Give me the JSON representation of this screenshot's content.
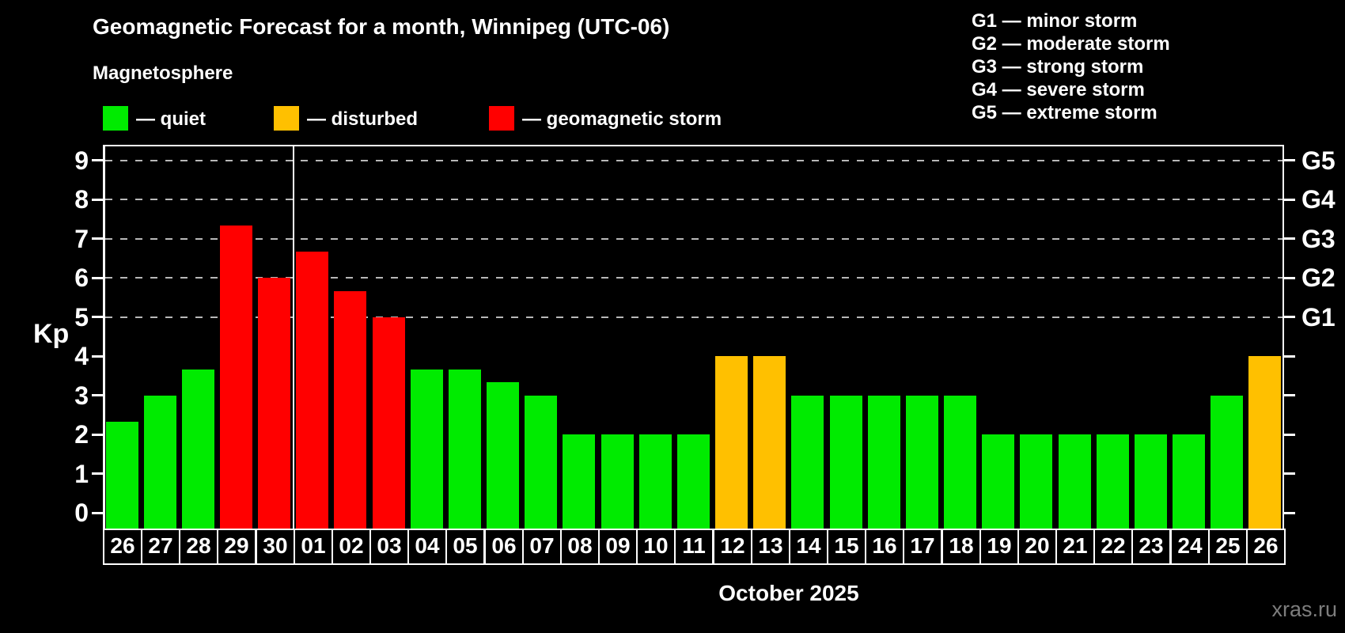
{
  "title": "Geomagnetic Forecast for a month, Winnipeg (UTC-06)",
  "subtitle": "Magnetosphere",
  "legend": {
    "items": [
      {
        "label": "— quiet",
        "color_key": "quiet"
      },
      {
        "label": "— disturbed",
        "color_key": "disturbed"
      },
      {
        "label": "— geomagnetic storm",
        "color_key": "storm"
      }
    ]
  },
  "g_legend": [
    "G1 — minor storm",
    "G2 — moderate storm",
    "G3 — strong storm",
    "G4 — severe storm",
    "G5 — extreme storm"
  ],
  "colors": {
    "quiet": "#00eb00",
    "disturbed": "#ffc000",
    "storm": "#ff0000",
    "background": "#000000",
    "grid": "#b8b8b8",
    "axis": "#ffffff",
    "watermark": "#7d7d7d"
  },
  "axis": {
    "y_label": "Kp",
    "y_ticks": [
      0,
      1,
      2,
      3,
      4,
      5,
      6,
      7,
      8,
      9
    ],
    "right_labels": {
      "5": "G1",
      "6": "G2",
      "7": "G3",
      "8": "G4",
      "9": "G5"
    },
    "x_label": "October 2025"
  },
  "watermark": "xras.ru",
  "chart_data": {
    "type": "bar",
    "title": "Geomagnetic Forecast for a month, Winnipeg (UTC-06)",
    "xlabel": "October 2025",
    "ylabel": "Kp",
    "ylim": [
      0,
      9
    ],
    "grid": "dashed horizontal lines at Kp 5-9 (G1-G5)",
    "legend_position": "top-left",
    "month_boundary_after_index": 4,
    "categories": [
      "26",
      "27",
      "28",
      "29",
      "30",
      "01",
      "02",
      "03",
      "04",
      "05",
      "06",
      "07",
      "08",
      "09",
      "10",
      "11",
      "12",
      "13",
      "14",
      "15",
      "16",
      "17",
      "18",
      "19",
      "20",
      "21",
      "22",
      "23",
      "24",
      "25",
      "26"
    ],
    "values": [
      2.33,
      3,
      3.67,
      7.33,
      6,
      6.67,
      5.67,
      5,
      3.67,
      3.67,
      3.33,
      3,
      2,
      2,
      2,
      2,
      4,
      4,
      3,
      3,
      3,
      3,
      3,
      2,
      2,
      2,
      2,
      2,
      2,
      3,
      4
    ],
    "statuses": [
      "quiet",
      "quiet",
      "quiet",
      "storm",
      "storm",
      "storm",
      "storm",
      "storm",
      "quiet",
      "quiet",
      "quiet",
      "quiet",
      "quiet",
      "quiet",
      "quiet",
      "quiet",
      "disturbed",
      "disturbed",
      "quiet",
      "quiet",
      "quiet",
      "quiet",
      "quiet",
      "quiet",
      "quiet",
      "quiet",
      "quiet",
      "quiet",
      "quiet",
      "quiet",
      "disturbed"
    ]
  }
}
